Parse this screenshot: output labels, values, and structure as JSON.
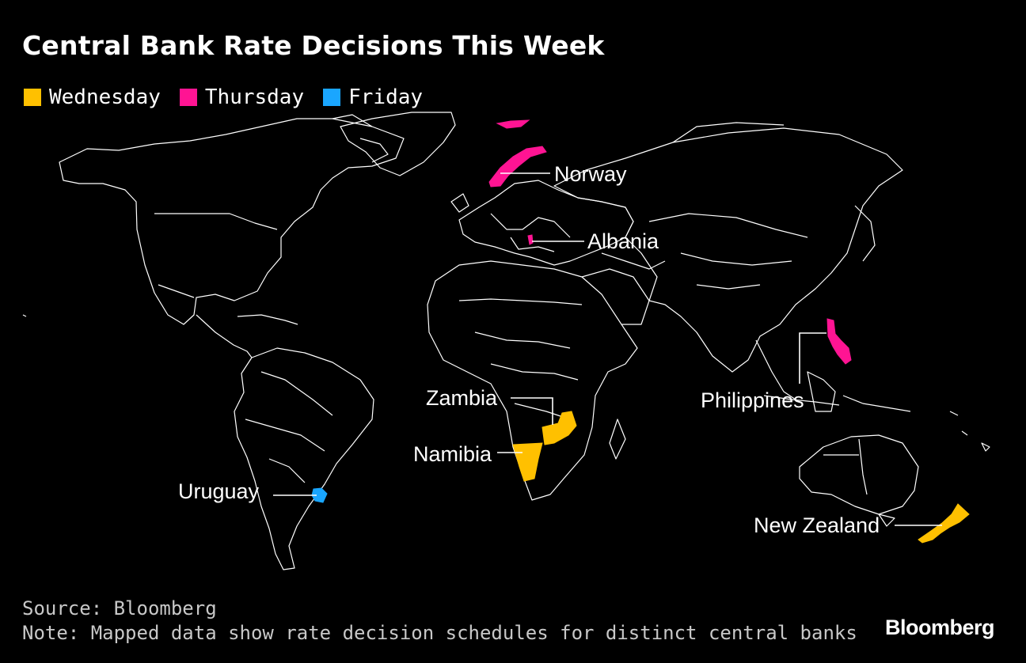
{
  "title": "Central Bank Rate Decisions This Week",
  "legend": [
    {
      "label": "Wednesday",
      "color": "#ffc000"
    },
    {
      "label": "Thursday",
      "color": "#ff1493"
    },
    {
      "label": "Friday",
      "color": "#1aa6ff"
    }
  ],
  "countries": [
    {
      "name": "Norway",
      "day": "Thursday"
    },
    {
      "name": "Albania",
      "day": "Thursday"
    },
    {
      "name": "Philippines",
      "day": "Thursday"
    },
    {
      "name": "Zambia",
      "day": "Wednesday"
    },
    {
      "name": "Namibia",
      "day": "Wednesday"
    },
    {
      "name": "New Zealand",
      "day": "Wednesday"
    },
    {
      "name": "Uruguay",
      "day": "Friday"
    }
  ],
  "footer": {
    "source": "Source: Bloomberg",
    "note": "Note: Mapped data show rate decision schedules for distinct central banks"
  },
  "brand": "Bloomberg"
}
